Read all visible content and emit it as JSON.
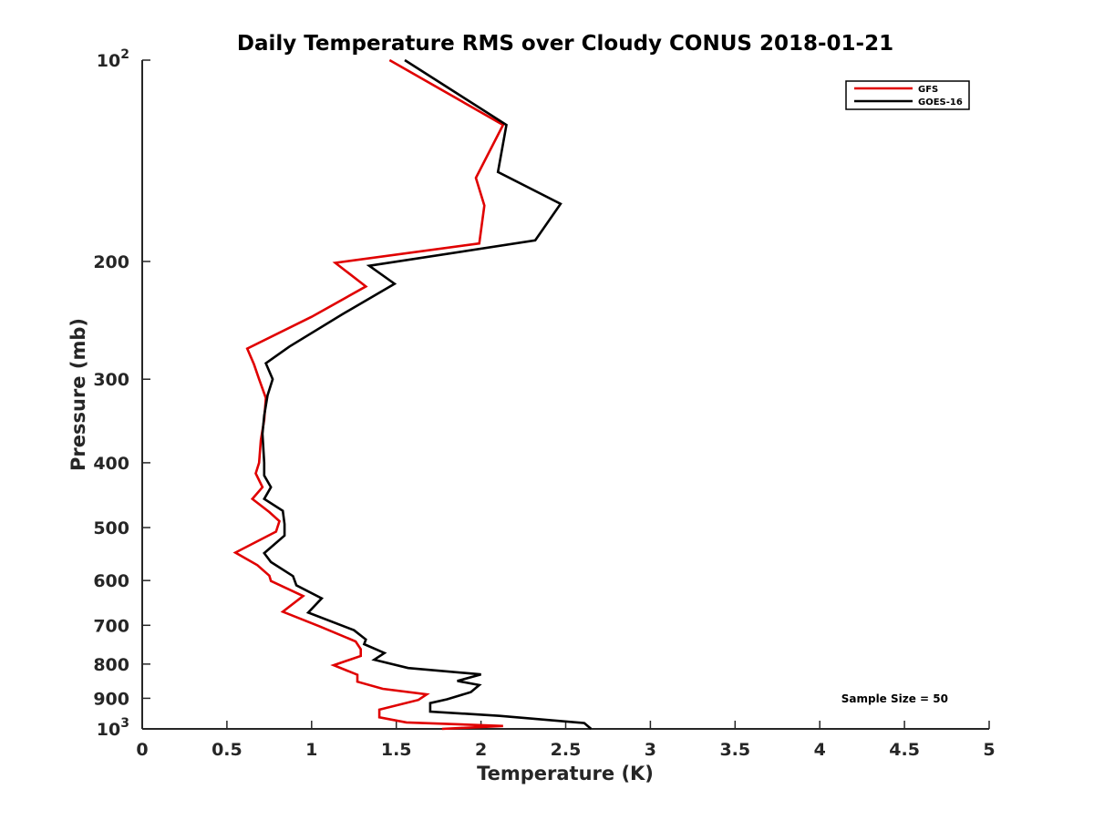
{
  "chart_data": {
    "type": "line",
    "title": "Daily Temperature RMS over Cloudy CONUS 2018-01-21",
    "xlabel": "Temperature (K)",
    "ylabel": "Pressure (mb)",
    "xlim": [
      0,
      5
    ],
    "ylim": [
      100,
      1000
    ],
    "y_scale": "log",
    "y_reversed": true,
    "x_ticks": [
      0,
      0.5,
      1,
      1.5,
      2,
      2.5,
      3,
      3.5,
      4,
      4.5,
      5
    ],
    "x_tick_labels": [
      "0",
      "0.5",
      "1",
      "1.5",
      "2",
      "2.5",
      "3",
      "3.5",
      "4",
      "4.5",
      "5"
    ],
    "y_ticks": [
      {
        "value": 100,
        "base": "10",
        "exp": "2"
      },
      {
        "value": 200,
        "label": "200"
      },
      {
        "value": 300,
        "label": "300"
      },
      {
        "value": 400,
        "label": "400"
      },
      {
        "value": 500,
        "label": "500"
      },
      {
        "value": 600,
        "label": "600"
      },
      {
        "value": 700,
        "label": "700"
      },
      {
        "value": 800,
        "label": "800"
      },
      {
        "value": 900,
        "label": "900"
      },
      {
        "value": 1000,
        "base": "10",
        "exp": "3"
      }
    ],
    "grid": false,
    "legend_position": "top-right",
    "annotation": "Sample Size = 50",
    "series": [
      {
        "name": "GFS",
        "color": "#e00000",
        "points": [
          [
            1.46,
            100
          ],
          [
            2.13,
            125
          ],
          [
            1.97,
            150
          ],
          [
            2.02,
            165
          ],
          [
            1.99,
            188
          ],
          [
            1.14,
            201
          ],
          [
            1.32,
            218
          ],
          [
            1.0,
            242
          ],
          [
            0.62,
            270
          ],
          [
            0.66,
            285
          ],
          [
            0.69,
            300
          ],
          [
            0.73,
            320
          ],
          [
            0.72,
            345
          ],
          [
            0.7,
            370
          ],
          [
            0.69,
            400
          ],
          [
            0.67,
            415
          ],
          [
            0.71,
            435
          ],
          [
            0.65,
            453
          ],
          [
            0.75,
            474
          ],
          [
            0.81,
            489
          ],
          [
            0.79,
            507
          ],
          [
            0.55,
            545
          ],
          [
            0.68,
            569
          ],
          [
            0.75,
            590
          ],
          [
            0.76,
            601
          ],
          [
            0.95,
            633
          ],
          [
            0.83,
            668
          ],
          [
            1.05,
            703
          ],
          [
            1.26,
            740
          ],
          [
            1.29,
            760
          ],
          [
            1.29,
            778
          ],
          [
            1.13,
            803
          ],
          [
            1.27,
            830
          ],
          [
            1.27,
            850
          ],
          [
            1.42,
            871
          ],
          [
            1.68,
            888
          ],
          [
            1.63,
            905
          ],
          [
            1.4,
            936
          ],
          [
            1.4,
            961
          ],
          [
            1.56,
            978
          ],
          [
            2.13,
            990
          ],
          [
            1.77,
            1000
          ]
        ]
      },
      {
        "name": "GOES-16",
        "color": "#000000",
        "points": [
          [
            1.55,
            100
          ],
          [
            2.15,
            125
          ],
          [
            2.1,
            147
          ],
          [
            2.47,
            164
          ],
          [
            2.32,
            186
          ],
          [
            1.34,
            203
          ],
          [
            1.49,
            216
          ],
          [
            1.18,
            240
          ],
          [
            0.87,
            268
          ],
          [
            0.73,
            284
          ],
          [
            0.77,
            300
          ],
          [
            0.74,
            317
          ],
          [
            0.72,
            340
          ],
          [
            0.71,
            362
          ],
          [
            0.72,
            400
          ],
          [
            0.72,
            418
          ],
          [
            0.76,
            435
          ],
          [
            0.72,
            453
          ],
          [
            0.83,
            472
          ],
          [
            0.84,
            494
          ],
          [
            0.84,
            514
          ],
          [
            0.72,
            546
          ],
          [
            0.76,
            563
          ],
          [
            0.89,
            591
          ],
          [
            0.91,
            610
          ],
          [
            1.06,
            638
          ],
          [
            0.98,
            670
          ],
          [
            1.25,
            712
          ],
          [
            1.32,
            735
          ],
          [
            1.31,
            747
          ],
          [
            1.43,
            770
          ],
          [
            1.37,
            788
          ],
          [
            1.57,
            811
          ],
          [
            2.0,
            829
          ],
          [
            1.86,
            848
          ],
          [
            1.99,
            860
          ],
          [
            1.94,
            881
          ],
          [
            1.8,
            903
          ],
          [
            1.7,
            915
          ],
          [
            1.7,
            942
          ],
          [
            2.11,
            956
          ],
          [
            2.61,
            980
          ],
          [
            2.65,
            1000
          ]
        ]
      }
    ]
  }
}
